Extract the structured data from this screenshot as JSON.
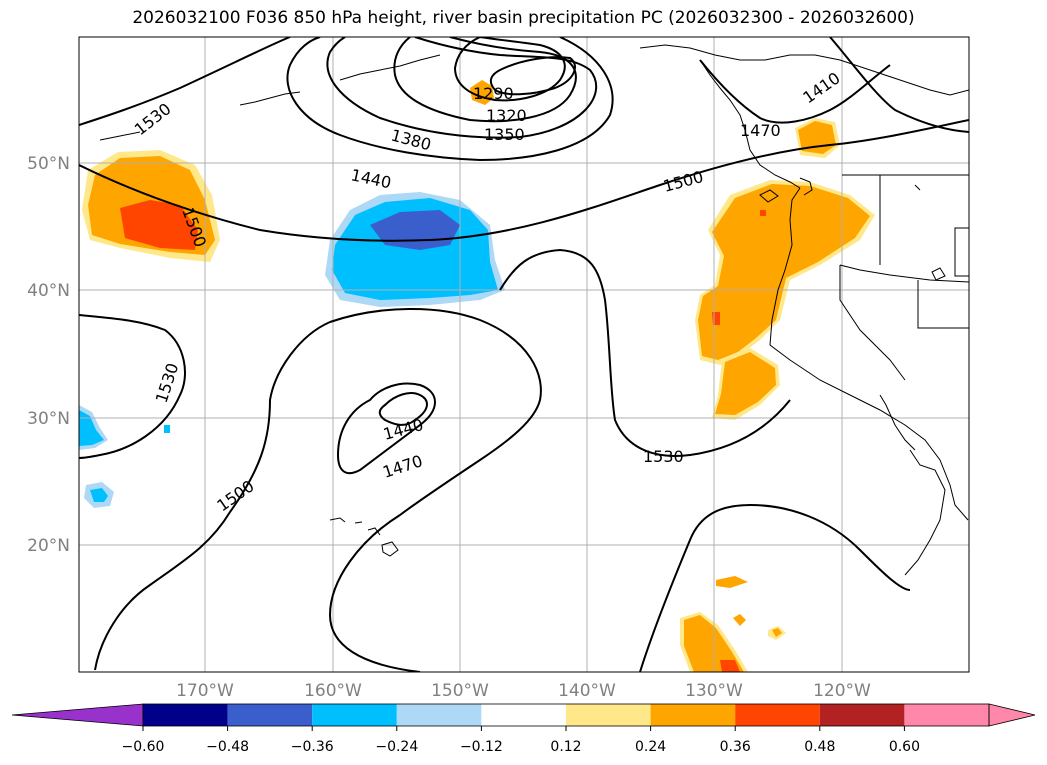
{
  "title": "2026032100 F036 850 hPa height, river basin precipitation PC (2026032300 - 2026032600)",
  "map": {
    "lon_labels": [
      "170°W",
      "160°W",
      "150°W",
      "140°W",
      "130°W",
      "120°W"
    ],
    "lat_labels": [
      "50°N",
      "40°N",
      "30°N",
      "20°N"
    ],
    "contour_labels": [
      "1290",
      "1320",
      "1350",
      "1380",
      "1410",
      "1440",
      "1470",
      "1500",
      "1530"
    ],
    "colors": {
      "orange": "#ffa500",
      "light_orange": "#ffe88a",
      "red_orange": "#ff4500",
      "cyan": "#00bfff",
      "light_blue": "#add8f6",
      "blue": "#3a5fcd"
    }
  },
  "colorbar": {
    "ticks": [
      "−0.60",
      "−0.48",
      "−0.36",
      "−0.24",
      "−0.12",
      "0.12",
      "0.24",
      "0.36",
      "0.48",
      "0.60"
    ],
    "colors": [
      "#9932cc",
      "#00008b",
      "#3a5fcd",
      "#00bfff",
      "#add8f6",
      "#ffffff",
      "#ffe88a",
      "#ffa500",
      "#ff4500",
      "#b22222",
      "#ff88aa",
      "#ff88aa"
    ]
  }
}
